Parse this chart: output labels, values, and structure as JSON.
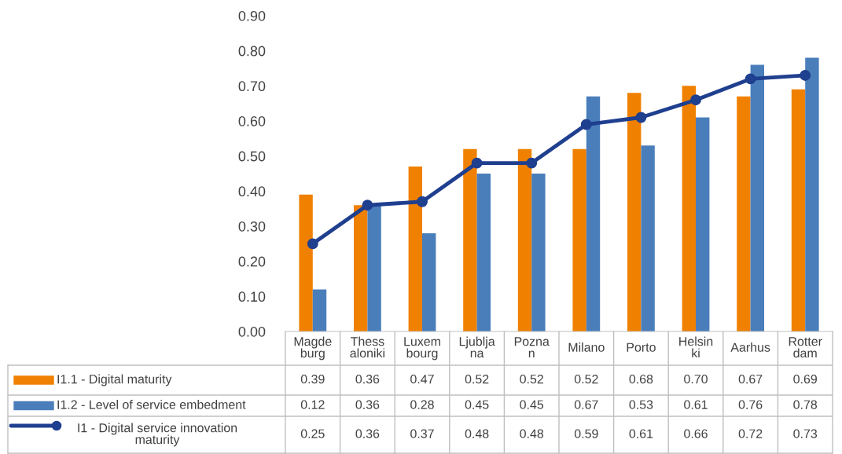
{
  "chart_data": {
    "type": "bar",
    "categories": [
      "Magdeburg",
      "Thessaloniki",
      "Luxembourg",
      "Ljubljana",
      "Poznan",
      "Milano",
      "Porto",
      "Helsinki",
      "Aarhus",
      "Rotterdam"
    ],
    "series": [
      {
        "name": "I1.1 - Digital maturity",
        "color": "#f08000",
        "values": [
          0.39,
          0.36,
          0.47,
          0.52,
          0.52,
          0.52,
          0.68,
          0.7,
          0.67,
          0.69
        ],
        "value_labels": [
          "0.39",
          "0.36",
          "0.47",
          "0.52",
          "0.52",
          "0.52",
          "0.68",
          "0.70",
          "0.67",
          "0.69"
        ]
      },
      {
        "name": "I1.2 - Level of service embedment",
        "color": "#4a7ebb",
        "values": [
          0.12,
          0.36,
          0.28,
          0.45,
          0.45,
          0.67,
          0.53,
          0.61,
          0.76,
          0.78
        ],
        "value_labels": [
          "0.12",
          "0.36",
          "0.28",
          "0.45",
          "0.45",
          "0.67",
          "0.53",
          "0.61",
          "0.76",
          "0.78"
        ]
      },
      {
        "name": "I1 - Digital service innovation maturity",
        "type": "line",
        "color": "#1f3f8f",
        "marker": "circle",
        "line_style": "solid",
        "values": [
          0.25,
          0.36,
          0.37,
          0.48,
          0.48,
          0.59,
          0.61,
          0.66,
          0.72,
          0.73
        ],
        "value_labels": [
          "0.25",
          "0.36",
          "0.37",
          "0.48",
          "0.48",
          "0.59",
          "0.61",
          "0.66",
          "0.72",
          "0.73"
        ]
      }
    ],
    "ylim": [
      0,
      0.9
    ],
    "yticks": [
      {
        "value": 0,
        "label": "0.00"
      },
      {
        "value": 0.1,
        "label": "0.10"
      },
      {
        "value": 0.2,
        "label": "0.20"
      },
      {
        "value": 0.3,
        "label": "0.30"
      },
      {
        "value": 0.4,
        "label": "0.40"
      },
      {
        "value": 0.5,
        "label": "0.50"
      },
      {
        "value": 0.6,
        "label": "0.60"
      },
      {
        "value": 0.7,
        "label": "0.70"
      },
      {
        "value": 0.8,
        "label": "0.80"
      },
      {
        "value": 0.9,
        "label": "0.90"
      }
    ],
    "grid": false,
    "legend": "bottom"
  }
}
